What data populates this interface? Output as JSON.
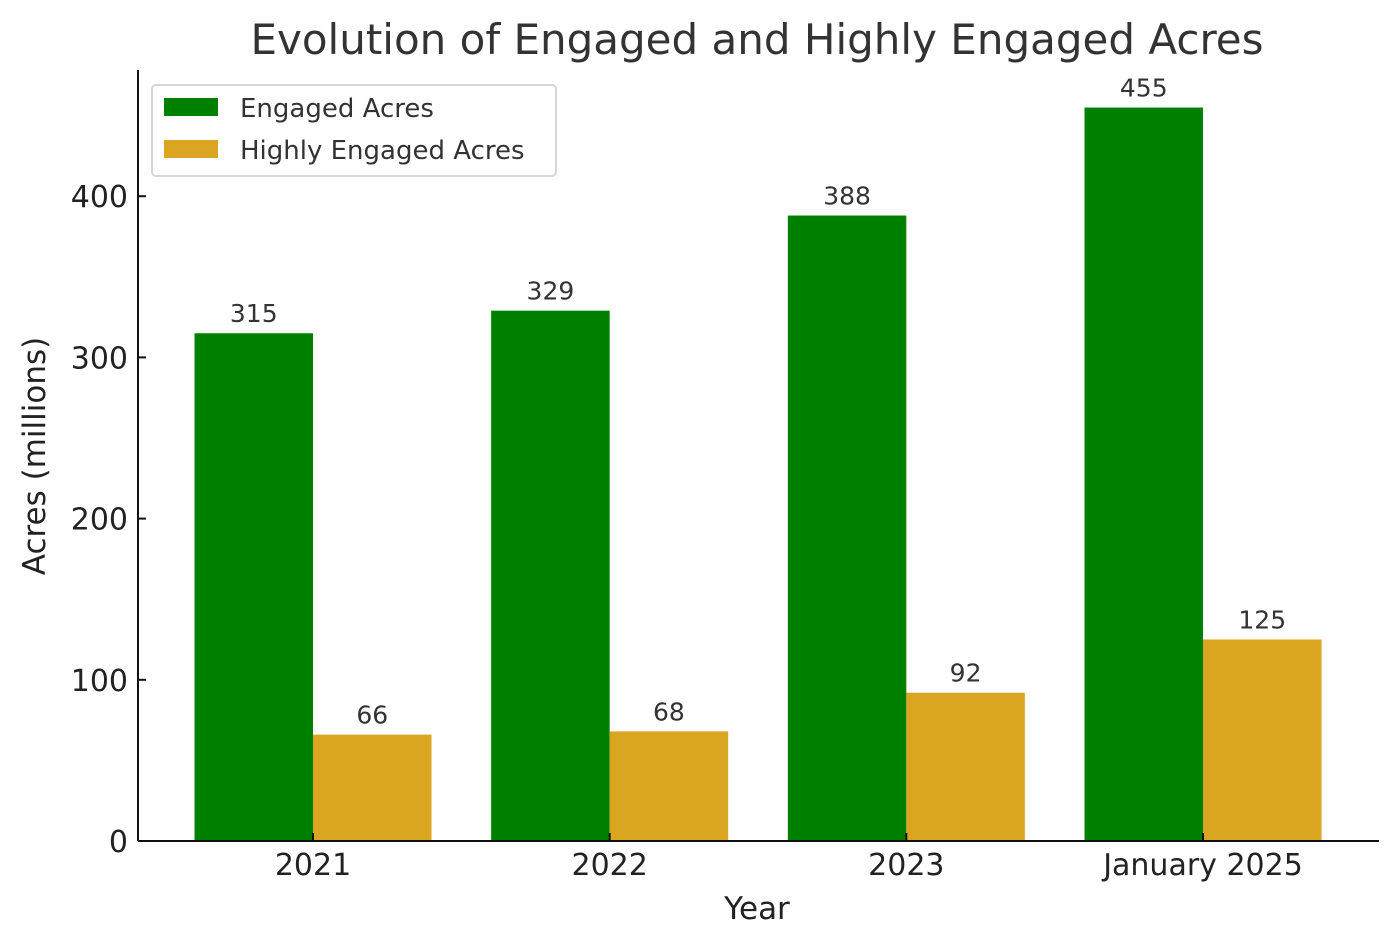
{
  "chart_data": {
    "type": "bar",
    "title": "Evolution of Engaged and Highly Engaged Acres",
    "xlabel": "Year",
    "ylabel": "Acres (millions)",
    "categories": [
      "2021",
      "2022",
      "2023",
      "January 2025"
    ],
    "series": [
      {
        "name": "Engaged Acres",
        "values": [
          315,
          329,
          388,
          455
        ],
        "color": "#008000"
      },
      {
        "name": "Highly Engaged Acres",
        "values": [
          66,
          68,
          92,
          125
        ],
        "color": "#DAA520"
      }
    ],
    "ylim": [
      0,
      478
    ],
    "yticks": [
      0,
      100,
      200,
      300,
      400
    ],
    "grid": false,
    "legend_position": "top-left"
  }
}
